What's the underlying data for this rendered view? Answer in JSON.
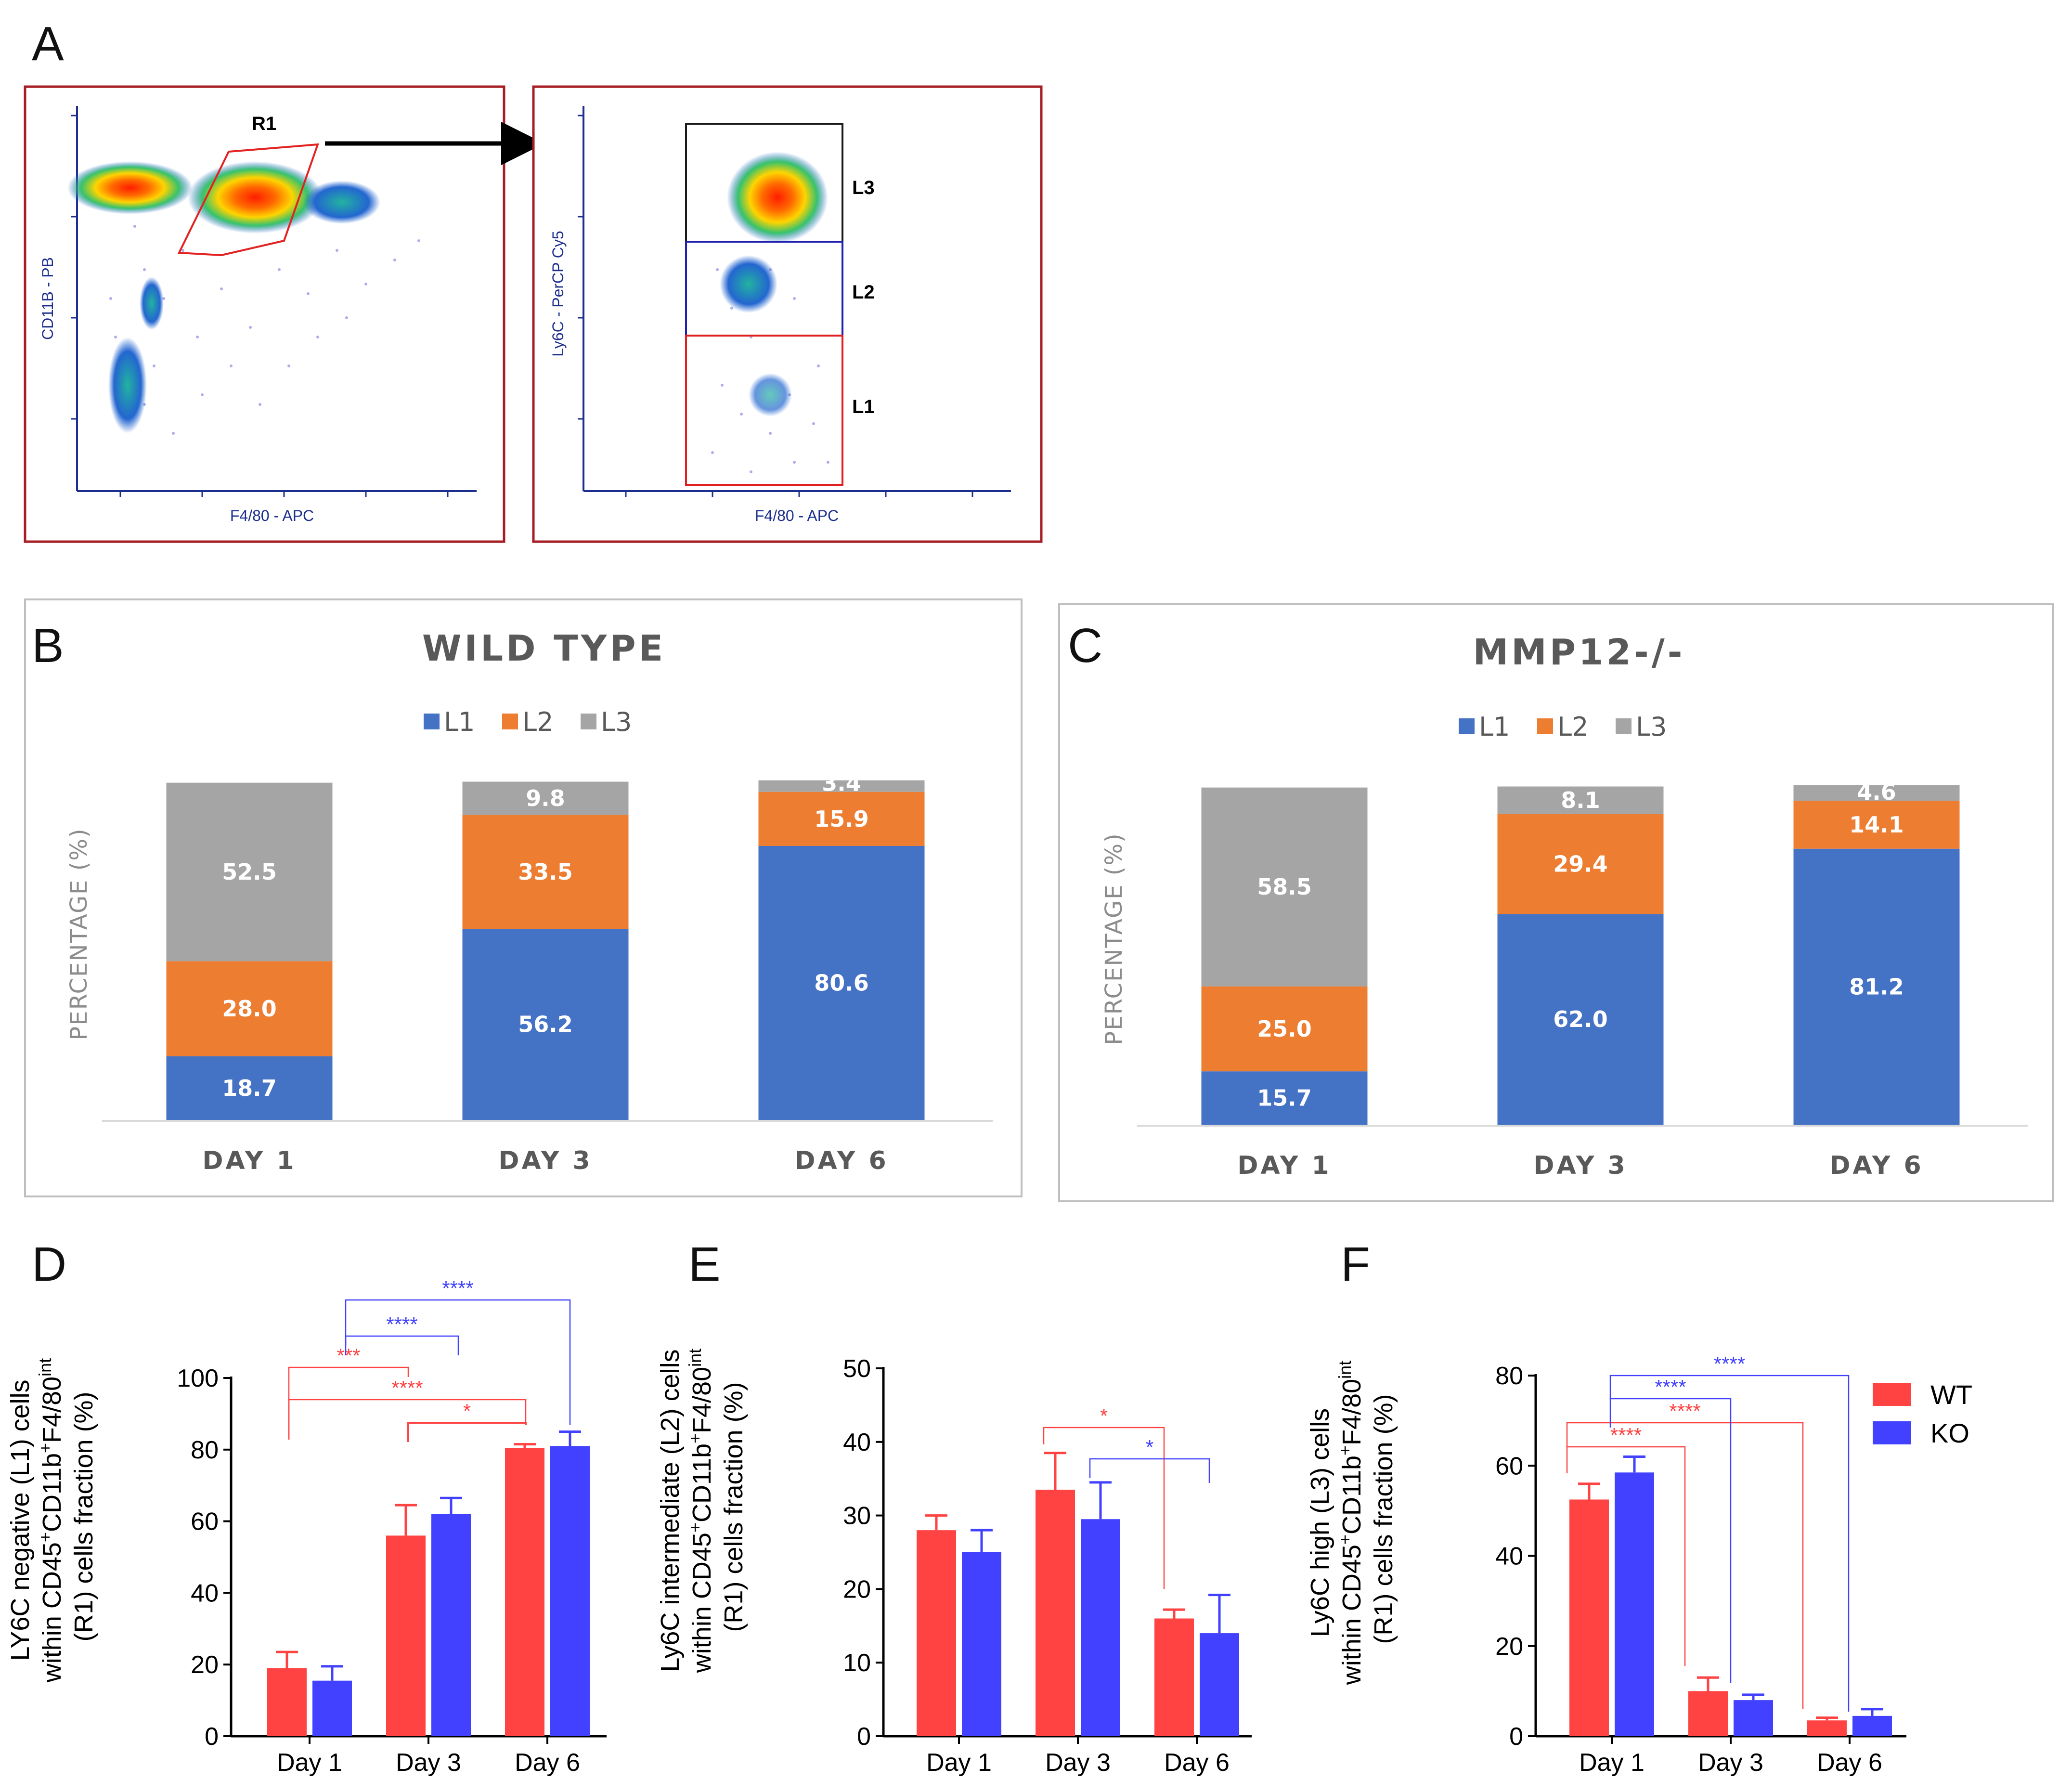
{
  "panel_letters": [
    "A",
    "B",
    "C",
    "D",
    "E",
    "F"
  ],
  "panel_a": {
    "left_plot": {
      "y_axis_label": "CD11B - PB",
      "x_axis_label": "F4/80 - APC",
      "gate_label": "R1"
    },
    "right_plot": {
      "y_axis_label": "Ly6C - PerCP Cy5",
      "x_axis_label": "F4/80 - APC",
      "gate_labels": [
        "L3",
        "L2",
        "L1"
      ]
    }
  },
  "colors": {
    "l1": "#4472C4",
    "l2": "#ED7D31",
    "l3": "#A5A5A5",
    "wt": "#FF4242",
    "ko": "#4141FF",
    "frame_red": "#A71D24",
    "axis_navy": "#1C2F8F"
  },
  "chart_data": [
    {
      "panel": "B",
      "type": "bar",
      "stacked": true,
      "title": "WILD TYPE",
      "ylabel": "PERCENTAGE (%)",
      "categories": [
        "DAY 1",
        "DAY 3",
        "DAY 6"
      ],
      "series": [
        {
          "name": "L1",
          "values": [
            18.7,
            56.2,
            80.6
          ],
          "labels": [
            "18.7",
            "56.2",
            "80.6"
          ]
        },
        {
          "name": "L2",
          "values": [
            28.0,
            33.5,
            15.9
          ],
          "labels": [
            "28.0",
            "33.5",
            "15.9"
          ]
        },
        {
          "name": "L3",
          "values": [
            52.5,
            9.8,
            3.4
          ],
          "labels": [
            "52.5",
            "9.8",
            "3.4"
          ]
        }
      ]
    },
    {
      "panel": "C",
      "type": "bar",
      "stacked": true,
      "title": "MMP12-/-",
      "ylabel": "PERCENTAGE (%)",
      "categories": [
        "DAY 1",
        "DAY 3",
        "DAY 6"
      ],
      "series": [
        {
          "name": "L1",
          "values": [
            15.7,
            62.0,
            81.2
          ],
          "labels": [
            "15.7",
            "62.0",
            "81.2"
          ]
        },
        {
          "name": "L2",
          "values": [
            25.0,
            29.4,
            14.1
          ],
          "labels": [
            "25.0",
            "29.4",
            "14.1"
          ]
        },
        {
          "name": "L3",
          "values": [
            58.5,
            8.1,
            4.6
          ],
          "labels": [
            "58.5",
            "8.1",
            "4.6"
          ]
        }
      ]
    },
    {
      "panel": "D",
      "type": "bar",
      "ylabel_lines": [
        "LY6C negative (L1) cells",
        "within CD45",
        "+",
        "CD11b",
        "+",
        "F4/80",
        "int",
        "(R1) cells fraction (%)"
      ],
      "categories": [
        "Day 1",
        "Day 3",
        "Day 6"
      ],
      "ylim": [
        0,
        100
      ],
      "yticks": [
        0,
        20,
        40,
        60,
        80,
        100
      ],
      "series": [
        {
          "name": "WT",
          "values": [
            19,
            56,
            80.5
          ],
          "errors": [
            4.5,
            8.5,
            1
          ]
        },
        {
          "name": "KO",
          "values": [
            15.5,
            62,
            81
          ],
          "errors": [
            4,
            4.5,
            4
          ]
        }
      ],
      "significance": [
        {
          "from": "Day 1",
          "to": "Day 3",
          "group": "WT",
          "label": "***"
        },
        {
          "from": "Day 1",
          "to": "Day 6",
          "group": "WT",
          "label": "****"
        },
        {
          "from": "Day 3",
          "to": "Day 6",
          "group": "WT",
          "label": "*"
        },
        {
          "from": "Day 1",
          "to": "Day 3",
          "group": "KO",
          "label": "****"
        },
        {
          "from": "Day 1",
          "to": "Day 6",
          "group": "KO",
          "label": "****"
        }
      ]
    },
    {
      "panel": "E",
      "type": "bar",
      "ylabel_lines": [
        "Ly6C intermediate (L2) cells",
        "within CD45",
        "+",
        "CD11b",
        "+",
        "F4/80",
        "int",
        "(R1) cells fraction (%)"
      ],
      "categories": [
        "Day 1",
        "Day 3",
        "Day 6"
      ],
      "ylim": [
        0,
        50
      ],
      "yticks": [
        0,
        10,
        20,
        30,
        40,
        50
      ],
      "series": [
        {
          "name": "WT",
          "values": [
            28,
            33.5,
            16
          ],
          "errors": [
            2,
            5,
            1.2
          ]
        },
        {
          "name": "KO",
          "values": [
            25,
            29.5,
            14
          ],
          "errors": [
            3,
            5,
            5.2
          ]
        }
      ],
      "significance": [
        {
          "from": "Day 3",
          "to": "Day 6",
          "group": "WT",
          "label": "*"
        },
        {
          "from": "Day 3",
          "to": "Day 6",
          "group": "KO",
          "label": "*"
        }
      ]
    },
    {
      "panel": "F",
      "type": "bar",
      "ylabel_lines": [
        "Ly6C high (L3) cells",
        "within CD45",
        "+",
        "CD11b",
        "+",
        "F4/80",
        "int",
        "(R1) cells fraction (%)"
      ],
      "categories": [
        "Day 1",
        "Day 3",
        "Day 6"
      ],
      "ylim": [
        0,
        80
      ],
      "yticks": [
        0,
        20,
        40,
        60,
        80
      ],
      "series": [
        {
          "name": "WT",
          "values": [
            52.5,
            10,
            3.5
          ],
          "errors": [
            3.5,
            3,
            0.6
          ]
        },
        {
          "name": "KO",
          "values": [
            58.5,
            8,
            4.5
          ],
          "errors": [
            3.5,
            1.2,
            1.5
          ]
        }
      ],
      "significance": [
        {
          "from": "Day 1",
          "to": "Day 3",
          "group": "WT",
          "label": "****"
        },
        {
          "from": "Day 1",
          "to": "Day 6",
          "group": "WT",
          "label": "****"
        },
        {
          "from": "Day 1",
          "to": "Day 3",
          "group": "KO",
          "label": "****"
        },
        {
          "from": "Day 1",
          "to": "Day 6",
          "group": "KO",
          "label": "****"
        }
      ],
      "legend": [
        "WT",
        "KO"
      ]
    }
  ]
}
